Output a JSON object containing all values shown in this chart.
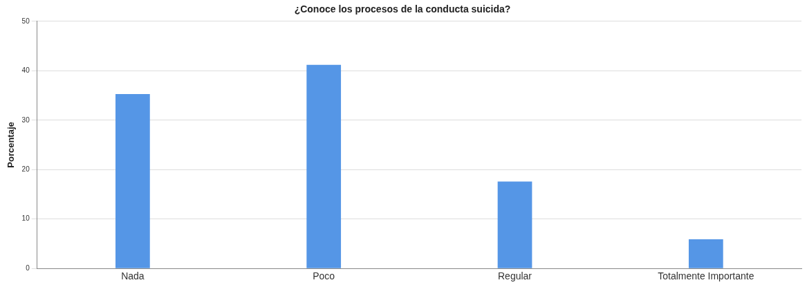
{
  "chart_data": {
    "type": "bar",
    "title": "¿Conoce los procesos de la conducta suicida?",
    "ylabel": "Porcentaje",
    "categories": [
      "Nada",
      "Poco",
      "Regular",
      "Totalmente Importante"
    ],
    "values": [
      35.3,
      41.2,
      17.6,
      5.9
    ],
    "color": "#5596e6",
    "ylim": [
      0,
      50
    ],
    "yticks": [
      0,
      10,
      20,
      30,
      40,
      50
    ],
    "grid": "y"
  }
}
